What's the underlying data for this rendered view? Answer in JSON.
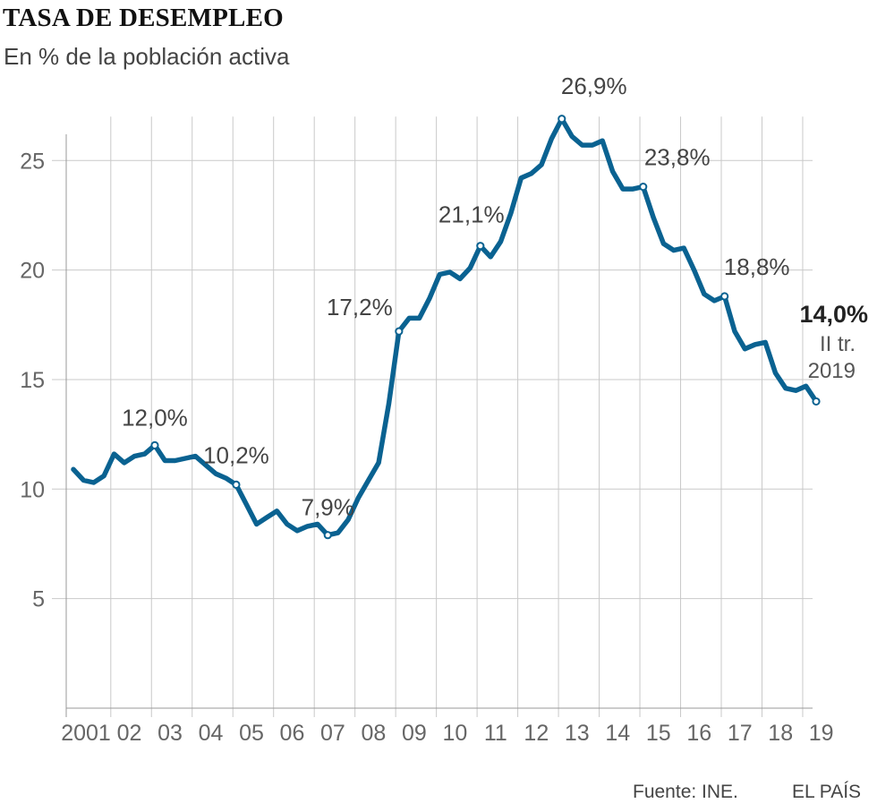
{
  "header": {
    "title": "TASA DE DESEMPLEO",
    "subtitle": "En % de la población activa"
  },
  "footer": {
    "source": "Fuente: INE.",
    "brand": "EL PAÍS"
  },
  "chart_data": {
    "type": "line",
    "title": "TASA DE DESEMPLEO",
    "subtitle": "En % de la población activa",
    "xlabel": "",
    "ylabel": "",
    "ylim": [
      0,
      27
    ],
    "yticks": [
      5,
      10,
      15,
      20,
      25
    ],
    "xticks": [
      {
        "label": "2001",
        "quarter": 0
      },
      {
        "label": "02",
        "quarter": 4
      },
      {
        "label": "03",
        "quarter": 8
      },
      {
        "label": "04",
        "quarter": 12
      },
      {
        "label": "05",
        "quarter": 16
      },
      {
        "label": "06",
        "quarter": 20
      },
      {
        "label": "07",
        "quarter": 24
      },
      {
        "label": "08",
        "quarter": 28
      },
      {
        "label": "09",
        "quarter": 32
      },
      {
        "label": "10",
        "quarter": 36
      },
      {
        "label": "11",
        "quarter": 40
      },
      {
        "label": "12",
        "quarter": 44
      },
      {
        "label": "13",
        "quarter": 48
      },
      {
        "label": "14",
        "quarter": 52
      },
      {
        "label": "15",
        "quarter": 56
      },
      {
        "label": "16",
        "quarter": 60
      },
      {
        "label": "17",
        "quarter": 64
      },
      {
        "label": "18",
        "quarter": 68
      },
      {
        "label": "19",
        "quarter": 72
      }
    ],
    "series": [
      {
        "name": "Tasa de desempleo",
        "color": "#0a6291",
        "values": [
          10.9,
          10.4,
          10.3,
          10.6,
          11.6,
          11.2,
          11.5,
          11.6,
          12.0,
          11.3,
          11.3,
          11.4,
          11.5,
          11.1,
          10.7,
          10.5,
          10.2,
          9.3,
          8.4,
          8.7,
          9.0,
          8.4,
          8.1,
          8.3,
          8.4,
          7.9,
          8.0,
          8.6,
          9.6,
          10.4,
          11.2,
          13.9,
          17.2,
          17.8,
          17.8,
          18.7,
          19.8,
          19.9,
          19.6,
          20.1,
          21.1,
          20.6,
          21.3,
          22.6,
          24.2,
          24.4,
          24.8,
          26.0,
          26.9,
          26.1,
          25.7,
          25.7,
          25.9,
          24.5,
          23.7,
          23.7,
          23.8,
          22.4,
          21.2,
          20.9,
          21.0,
          20.0,
          18.9,
          18.6,
          18.8,
          17.2,
          16.4,
          16.6,
          16.7,
          15.3,
          14.6,
          14.5,
          14.7,
          14.0
        ]
      }
    ],
    "annotations": [
      {
        "quarter": 8,
        "value": 12.0,
        "label": "12,0%"
      },
      {
        "quarter": 16,
        "value": 10.2,
        "label": "10,2%"
      },
      {
        "quarter": 25,
        "value": 7.9,
        "label": "7,9%"
      },
      {
        "quarter": 32,
        "value": 17.2,
        "label": "17,2%"
      },
      {
        "quarter": 40,
        "value": 21.1,
        "label": "21,1%"
      },
      {
        "quarter": 48,
        "value": 26.9,
        "label": "26,9%"
      },
      {
        "quarter": 56,
        "value": 23.8,
        "label": "23,8%"
      },
      {
        "quarter": 64,
        "value": 18.8,
        "label": "18,8%"
      },
      {
        "quarter": 73,
        "value": 14.0,
        "label": "14,0%",
        "bold": true,
        "note_line1": "II tr.",
        "note_line2": "2019"
      }
    ],
    "grid": true
  }
}
